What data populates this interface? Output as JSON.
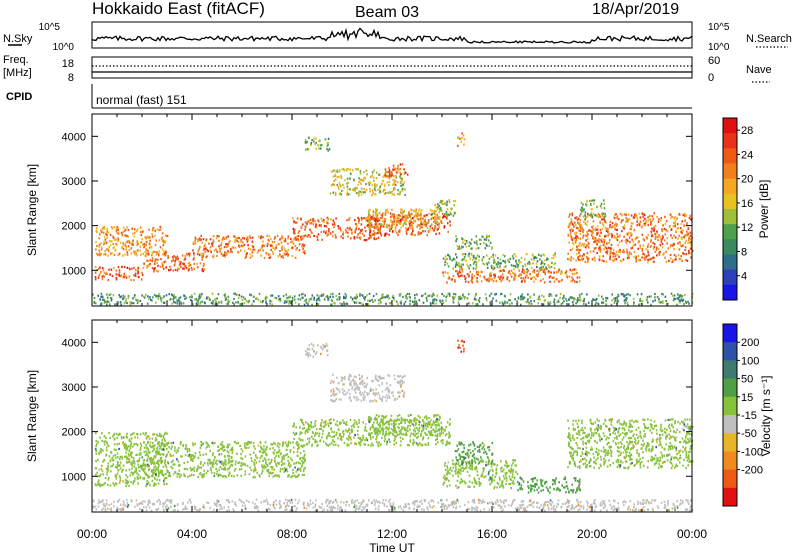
{
  "header": {
    "station": "Hokkaido East (fitACF)",
    "beam": "Beam 03",
    "date": "18/Apr/2019"
  },
  "top_panels": {
    "nsky_label": "N.Sky",
    "nsky_ticks": [
      "10^5",
      "10^0"
    ],
    "nsearch_label": "N.Search",
    "nsearch_ticks": [
      "10^5",
      "10^0"
    ],
    "freq_label": "Freq.",
    "freq_unit": "[MHz]",
    "freq_ticks": [
      "18",
      "8"
    ],
    "nave_label": "Nave",
    "nave_ticks": [
      "60",
      "0"
    ],
    "cpid_label": "CPID",
    "cpid_value": "normal (fast) 151"
  },
  "chart_data": [
    {
      "type": "heatmap",
      "name": "power-panel",
      "ylabel": "Slant Range [km]",
      "xlabel": "Time UT",
      "x_range_hours": [
        0,
        24
      ],
      "ylim": [
        200,
        4500
      ],
      "x_ticks": [
        "00:00",
        "04:00",
        "08:00",
        "12:00",
        "16:00",
        "20:00",
        "00:00"
      ],
      "y_ticks": [
        1000,
        2000,
        3000,
        4000
      ],
      "colorbar": {
        "label": "Power [dB]",
        "ticks": [
          "28",
          "24",
          "20",
          "16",
          "12",
          "8",
          "4"
        ],
        "colors": [
          "#1a14e6",
          "#2a3fb8",
          "#2f6e8a",
          "#3b8a5f",
          "#4fa04a",
          "#9fbf3a",
          "#e6c31f",
          "#f5a623",
          "#f07f1d",
          "#ee5a16",
          "#e8331a",
          "#e01010"
        ]
      },
      "echo_bands": [
        {
          "t0": 0.1,
          "t1": 2.0,
          "r0": 800,
          "r1": 1100,
          "p": 24
        },
        {
          "t0": 0.1,
          "t1": 3.0,
          "r0": 1350,
          "r1": 2000,
          "p": 20
        },
        {
          "t0": 2.0,
          "t1": 4.5,
          "r0": 1000,
          "r1": 1400,
          "p": 23
        },
        {
          "t0": 4.0,
          "t1": 8.5,
          "r0": 1300,
          "r1": 1800,
          "p": 22
        },
        {
          "t0": 8.0,
          "t1": 11.5,
          "r0": 1700,
          "r1": 2200,
          "p": 23
        },
        {
          "t0": 11.0,
          "t1": 14.3,
          "r0": 1800,
          "r1": 2300,
          "p": 24
        },
        {
          "t0": 9.5,
          "t1": 12.5,
          "r0": 2700,
          "r1": 3300,
          "p": 15
        },
        {
          "t0": 11.7,
          "t1": 12.6,
          "r0": 3100,
          "r1": 3400,
          "p": 24
        },
        {
          "t0": 13.5,
          "t1": 14.5,
          "r0": 2200,
          "r1": 2600,
          "p": 14
        },
        {
          "t0": 11.0,
          "t1": 14.0,
          "r0": 1950,
          "r1": 2400,
          "p": 18
        },
        {
          "t0": 14.0,
          "t1": 19.5,
          "r0": 750,
          "r1": 1050,
          "p": 22
        },
        {
          "t0": 14.0,
          "t1": 18.5,
          "r0": 1050,
          "r1": 1400,
          "p": 12
        },
        {
          "t0": 14.5,
          "t1": 16.0,
          "r0": 1500,
          "r1": 1800,
          "p": 11
        },
        {
          "t0": 19.0,
          "t1": 24.0,
          "r0": 1200,
          "r1": 2300,
          "p": 22
        },
        {
          "t0": 19.5,
          "t1": 20.5,
          "r0": 2200,
          "r1": 2600,
          "p": 12
        },
        {
          "t0": 0.0,
          "t1": 24.0,
          "r0": 250,
          "r1": 500,
          "p": 10
        },
        {
          "t0": 8.5,
          "t1": 9.5,
          "r0": 3700,
          "r1": 4000,
          "p": 12
        },
        {
          "t0": 14.6,
          "t1": 14.9,
          "r0": 3800,
          "r1": 4100,
          "p": 20
        }
      ]
    },
    {
      "type": "heatmap",
      "name": "velocity-panel",
      "ylabel": "Slant Range [km]",
      "xlabel": "Time UT",
      "x_range_hours": [
        0,
        24
      ],
      "ylim": [
        200,
        4500
      ],
      "x_ticks": [
        "00:00",
        "04:00",
        "08:00",
        "12:00",
        "16:00",
        "20:00",
        "00:00"
      ],
      "y_ticks": [
        1000,
        2000,
        3000,
        4000
      ],
      "colorbar": {
        "label": "Velocity [m s⁻¹]",
        "ticks": [
          "200",
          "100",
          "50",
          "15",
          "-15",
          "-50",
          "-100",
          "-200"
        ],
        "colors": [
          "#1a14e6",
          "#2f4fa8",
          "#3f7a6f",
          "#4f9f45",
          "#86c23a",
          "#bfbfbf",
          "#e8b42a",
          "#f08a1f",
          "#ee5a16",
          "#e01010"
        ]
      },
      "echo_bands": [
        {
          "t0": 0.1,
          "t1": 3.0,
          "r0": 800,
          "r1": 2000,
          "v": 0
        },
        {
          "t0": 2.0,
          "t1": 8.5,
          "r0": 1000,
          "r1": 1800,
          "v": 0
        },
        {
          "t0": 8.0,
          "t1": 14.3,
          "r0": 1700,
          "r1": 2300,
          "v": 0
        },
        {
          "t0": 9.5,
          "t1": 12.5,
          "r0": 2700,
          "r1": 3300,
          "v": -40
        },
        {
          "t0": 11.0,
          "t1": 14.0,
          "r0": 1950,
          "r1": 2400,
          "v": 5
        },
        {
          "t0": 14.0,
          "t1": 17.0,
          "r0": 750,
          "r1": 1400,
          "v": 0
        },
        {
          "t0": 17.0,
          "t1": 19.5,
          "r0": 650,
          "r1": 1000,
          "v": 25
        },
        {
          "t0": 14.5,
          "t1": 16.0,
          "r0": 1300,
          "r1": 1800,
          "v": 25
        },
        {
          "t0": 19.0,
          "t1": 24.0,
          "r0": 1200,
          "r1": 2300,
          "v": 0
        },
        {
          "t0": 0.0,
          "t1": 24.0,
          "r0": 250,
          "r1": 500,
          "v": -40
        },
        {
          "t0": 14.6,
          "t1": 14.9,
          "r0": 3800,
          "r1": 4100,
          "v": -250
        },
        {
          "t0": 8.5,
          "t1": 9.5,
          "r0": 3700,
          "r1": 4000,
          "v": -30
        }
      ]
    }
  ]
}
